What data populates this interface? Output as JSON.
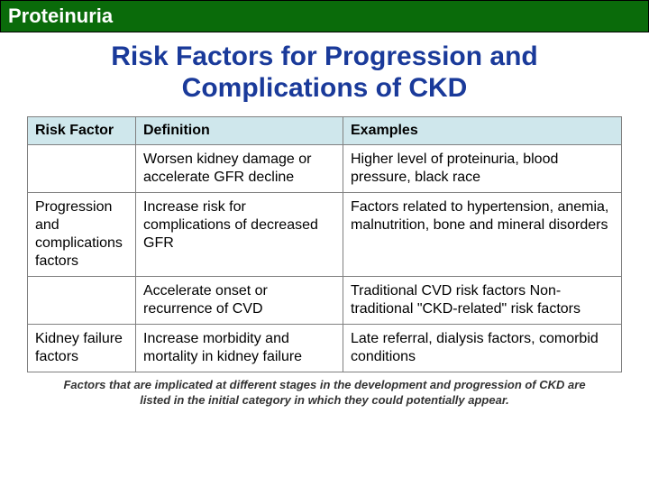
{
  "header": {
    "title": "Proteinuria",
    "bg_color": "#0a6b0a",
    "text_color": "#ffffff"
  },
  "main_title": "Risk Factors for Progression and Complications of CKD",
  "title_color": "#1a3a9a",
  "table": {
    "header_bg": "#cfe7ec",
    "columns": [
      "Risk Factor",
      "Definition",
      "Examples"
    ],
    "rows": [
      {
        "risk_factor": "",
        "definition": "Worsen kidney damage or accelerate GFR decline",
        "examples": "Higher level of proteinuria, blood pressure, black race"
      },
      {
        "risk_factor": "Progression and complications factors",
        "definition": "Increase risk for complications of decreased GFR",
        "examples": "Factors related to hypertension, anemia, malnutrition, bone and mineral disorders"
      },
      {
        "risk_factor": "",
        "definition": "Accelerate onset or recurrence of CVD",
        "examples": "Traditional CVD risk factors Non-traditional \"CKD-related\" risk factors"
      },
      {
        "risk_factor": "Kidney failure factors",
        "definition": "Increase morbidity and mortality in kidney failure",
        "examples": "Late referral, dialysis factors, comorbid conditions"
      }
    ]
  },
  "footnote": "Factors that are implicated at different stages in the development and progression of CKD are listed in the initial category in which they could potentially appear."
}
